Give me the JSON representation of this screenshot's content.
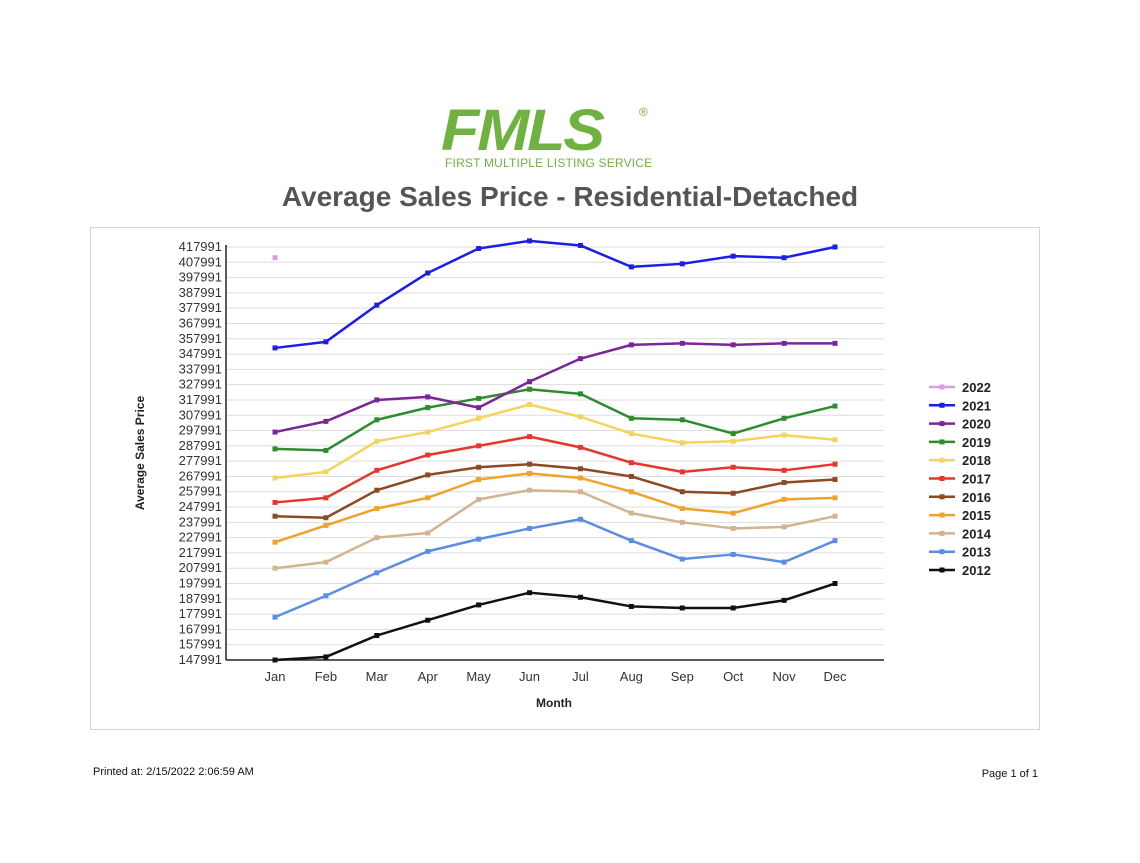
{
  "logo": {
    "name": "FMLS",
    "tagline": "FIRST MULTIPLE LISTING SERVICE",
    "color": "#6fb23f"
  },
  "footer": {
    "printed_at": "Printed at:  2/15/2022 2:06:59 AM",
    "page": "Page 1 of 1"
  },
  "chart_data": {
    "type": "line",
    "title": "Average Sales Price - Residential-Detached",
    "xlabel": "Month",
    "ylabel": "Average Sales Price",
    "categories": [
      "Jan",
      "Feb",
      "Mar",
      "Apr",
      "May",
      "Jun",
      "Jul",
      "Aug",
      "Sep",
      "Oct",
      "Nov",
      "Dec"
    ],
    "yticks": [
      147991,
      157991,
      167991,
      177991,
      187991,
      197991,
      207991,
      217991,
      227991,
      237991,
      247991,
      257991,
      267991,
      277991,
      287991,
      297991,
      307991,
      317991,
      327991,
      337991,
      347991,
      357991,
      367991,
      377991,
      387991,
      397991,
      407991,
      417991
    ],
    "ylim": [
      147991,
      417991
    ],
    "grid": true,
    "legend_position": "right",
    "series": [
      {
        "name": "2022",
        "color": "#d9a0dd",
        "values": [
          411000,
          null,
          null,
          null,
          null,
          null,
          null,
          null,
          null,
          null,
          null,
          null
        ]
      },
      {
        "name": "2021",
        "color": "#1a1ee6",
        "values": [
          352000,
          356000,
          380000,
          401000,
          417000,
          422000,
          419000,
          405000,
          407000,
          412000,
          411000,
          418000
        ]
      },
      {
        "name": "2020",
        "color": "#7b2597",
        "values": [
          297000,
          304000,
          318000,
          320000,
          313000,
          330000,
          345000,
          354000,
          355000,
          354000,
          355000,
          355000
        ]
      },
      {
        "name": "2019",
        "color": "#2e8c2e",
        "values": [
          286000,
          285000,
          305000,
          313000,
          319000,
          325000,
          322000,
          306000,
          305000,
          296000,
          306000,
          314000
        ]
      },
      {
        "name": "2018",
        "color": "#f4d35e",
        "values": [
          267000,
          271000,
          291000,
          297000,
          306000,
          315000,
          307000,
          296000,
          290000,
          291000,
          295000,
          292000
        ]
      },
      {
        "name": "2017",
        "color": "#e5372d",
        "values": [
          251000,
          254000,
          272000,
          282000,
          288000,
          294000,
          287000,
          277000,
          271000,
          274000,
          272000,
          276000
        ]
      },
      {
        "name": "2016",
        "color": "#8b4a24",
        "values": [
          242000,
          241000,
          259000,
          269000,
          274000,
          276000,
          273000,
          268000,
          258000,
          257000,
          264000,
          266000
        ]
      },
      {
        "name": "2015",
        "color": "#f0a22d",
        "values": [
          225000,
          236000,
          247000,
          254000,
          266000,
          270000,
          267000,
          258000,
          247000,
          244000,
          253000,
          254000
        ]
      },
      {
        "name": "2014",
        "color": "#d2b490",
        "values": [
          208000,
          212000,
          228000,
          231000,
          253000,
          259000,
          258000,
          244000,
          238000,
          234000,
          235000,
          242000
        ]
      },
      {
        "name": "2013",
        "color": "#5b8de3",
        "values": [
          176000,
          190000,
          205000,
          219000,
          227000,
          234000,
          240000,
          226000,
          214000,
          217000,
          212000,
          226000
        ]
      },
      {
        "name": "2012",
        "color": "#111111",
        "values": [
          147991,
          150000,
          164000,
          174000,
          184000,
          192000,
          189000,
          183000,
          182000,
          182000,
          187000,
          198000
        ]
      }
    ]
  }
}
